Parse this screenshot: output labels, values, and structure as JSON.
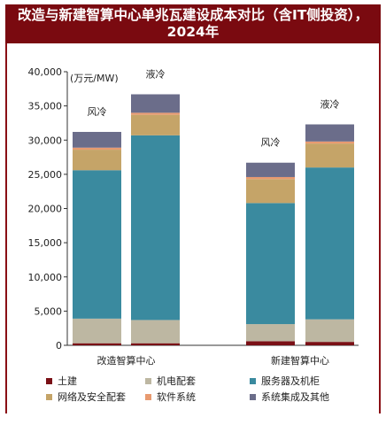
{
  "title": "改造与新建智算中心单兆瓦建设成本对比（含IT侧投资），2024年",
  "chart_data": {
    "type": "bar",
    "stacked": true,
    "title": "改造与新建智算中心单兆瓦建设成本对比（含IT侧投资），2024年",
    "ylabel": "(万元/MW)",
    "ylim": [
      0,
      40000
    ],
    "yticks": [
      "0",
      "5,000",
      "10,000",
      "15,000",
      "20,000",
      "25,000",
      "30,000",
      "35,000",
      "40,000"
    ],
    "groups": [
      "改造智算中心",
      "新建智算中心"
    ],
    "bars": [
      {
        "group": "改造智算中心",
        "label": "风冷",
        "values": [
          300,
          3600,
          21700,
          3000,
          300,
          2300
        ]
      },
      {
        "group": "改造智算中心",
        "label": "液冷",
        "values": [
          300,
          3400,
          27000,
          3000,
          300,
          2700
        ]
      },
      {
        "group": "新建智算中心",
        "label": "风冷",
        "values": [
          600,
          2500,
          17700,
          3500,
          300,
          2100
        ]
      },
      {
        "group": "新建智算中心",
        "label": "液冷",
        "values": [
          500,
          3300,
          22200,
          3500,
          300,
          2500
        ]
      }
    ],
    "series": [
      {
        "name": "土建",
        "color": "#7a1016"
      },
      {
        "name": "机电配套",
        "color": "#bdb7a2"
      },
      {
        "name": "服务器及机柜",
        "color": "#3a8a9f"
      },
      {
        "name": "网络及安全配套",
        "color": "#c5a468"
      },
      {
        "name": "软件系统",
        "color": "#e89a70"
      },
      {
        "name": "系统集成及其他",
        "color": "#6b6d8a"
      }
    ],
    "legend_position": "bottom",
    "grid": false
  }
}
